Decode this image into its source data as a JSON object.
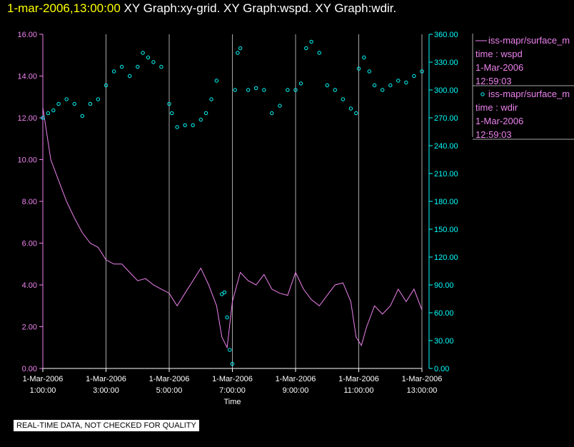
{
  "header": {
    "timestamp": "1-mar-2006,13:00:00",
    "titles": "XY Graph:xy-grid.  XY Graph:wspd.  XY Graph:wdir."
  },
  "notice": "REAL-TIME DATA, NOT CHECKED FOR QUALITY",
  "legend": [
    {
      "symbol": "line",
      "name": "iss-mapr/surface_m",
      "line2": "time : wspd",
      "line3": "1-Mar-2006",
      "line4": "12:59:03",
      "color": "#ee82ee"
    },
    {
      "symbol": "circle",
      "name": "iss-mapr/surface_m",
      "line2": "time : wdir",
      "line3": "1-Mar-2006",
      "line4": "12:59:03",
      "color": "#00ffff"
    }
  ],
  "chart_data": {
    "type": "line",
    "xlabel": "Time",
    "x_ticks": [
      {
        "date": "1-Mar-2006",
        "time": "1:00:00"
      },
      {
        "date": "1-Mar-2006",
        "time": "3:00:00"
      },
      {
        "date": "1-Mar-2006",
        "time": "5:00:00"
      },
      {
        "date": "1-Mar-2006",
        "time": "7:00:00"
      },
      {
        "date": "1-Mar-2006",
        "time": "9:00:00"
      },
      {
        "date": "1-Mar-2006",
        "time": "11:00:00"
      },
      {
        "date": "1-Mar-2006",
        "time": "13:00:00"
      }
    ],
    "x_range": [
      "1-Mar-2006 1:00:00",
      "1-Mar-2006 13:00:00"
    ],
    "y_left": {
      "min": 0,
      "max": 16,
      "ticks": [
        "0.00",
        "2.00",
        "4.00",
        "6.00",
        "8.00",
        "10.00",
        "12.00",
        "14.00",
        "16.00"
      ],
      "color": "#ee82ee"
    },
    "y_right": {
      "min": 0,
      "max": 360,
      "ticks": [
        "0.00",
        "30.00",
        "60.00",
        "90.00",
        "120.00",
        "150.00",
        "180.00",
        "210.00",
        "240.00",
        "270.00",
        "300.00",
        "330.00",
        "360.00"
      ],
      "color": "#00ffff"
    },
    "grid": "vertical",
    "series": [
      {
        "axis": "left",
        "style": "line",
        "color": "#ee82ee",
        "time": [
          "1:00",
          "1:15",
          "1:30",
          "1:45",
          "2:00",
          "2:15",
          "2:30",
          "2:45",
          "3:00",
          "3:15",
          "3:30",
          "3:45",
          "4:00",
          "4:15",
          "4:30",
          "4:45",
          "5:00",
          "5:15",
          "5:30",
          "5:45",
          "6:00",
          "6:15",
          "6:30",
          "6:40",
          "6:50",
          "7:00",
          "7:15",
          "7:30",
          "7:45",
          "8:00",
          "8:15",
          "8:30",
          "8:45",
          "9:00",
          "9:15",
          "9:30",
          "9:45",
          "10:00",
          "10:15",
          "10:30",
          "10:45",
          "10:55",
          "11:05",
          "11:15",
          "11:30",
          "11:45",
          "12:00",
          "12:15",
          "12:30",
          "12:45",
          "13:00"
        ],
        "values": [
          12.5,
          10.0,
          9.0,
          8.0,
          7.2,
          6.5,
          6.0,
          5.8,
          5.2,
          5.0,
          5.0,
          4.6,
          4.2,
          4.3,
          4.0,
          3.8,
          3.6,
          3.0,
          3.6,
          4.2,
          4.8,
          4.0,
          3.0,
          1.5,
          1.0,
          3.2,
          4.6,
          4.2,
          4.0,
          4.5,
          3.8,
          3.6,
          3.5,
          4.6,
          3.8,
          3.3,
          3.0,
          3.5,
          4.0,
          4.1,
          3.2,
          1.5,
          1.1,
          2.0,
          3.0,
          2.6,
          3.0,
          3.8,
          3.2,
          3.8,
          2.8
        ]
      },
      {
        "axis": "right",
        "style": "circle",
        "color": "#00ffff",
        "time": [
          "1:00",
          "1:10",
          "1:20",
          "1:30",
          "1:45",
          "2:00",
          "2:15",
          "2:30",
          "2:45",
          "3:00",
          "3:15",
          "3:30",
          "3:45",
          "4:00",
          "4:10",
          "4:20",
          "4:30",
          "4:45",
          "5:00",
          "5:05",
          "5:15",
          "5:30",
          "5:45",
          "6:00",
          "6:10",
          "6:20",
          "6:30",
          "6:40",
          "6:45",
          "6:50",
          "6:55",
          "7:00",
          "7:05",
          "7:10",
          "7:15",
          "7:30",
          "7:45",
          "8:00",
          "8:15",
          "8:30",
          "8:45",
          "9:00",
          "9:10",
          "9:20",
          "9:30",
          "9:45",
          "10:00",
          "10:15",
          "10:30",
          "10:45",
          "10:55",
          "11:00",
          "11:10",
          "11:20",
          "11:30",
          "11:45",
          "12:00",
          "12:15",
          "12:30",
          "12:45",
          "13:00"
        ],
        "values": [
          270,
          275,
          278,
          285,
          290,
          285,
          272,
          285,
          290,
          305,
          320,
          325,
          315,
          325,
          340,
          335,
          330,
          325,
          285,
          275,
          260,
          262,
          262,
          268,
          275,
          290,
          310,
          80,
          82,
          55,
          20,
          5,
          300,
          340,
          345,
          300,
          302,
          300,
          275,
          283,
          300,
          300,
          307,
          345,
          352,
          340,
          305,
          300,
          290,
          280,
          275,
          323,
          335,
          320,
          305,
          300,
          305,
          310,
          308,
          315,
          320
        ]
      }
    ]
  }
}
